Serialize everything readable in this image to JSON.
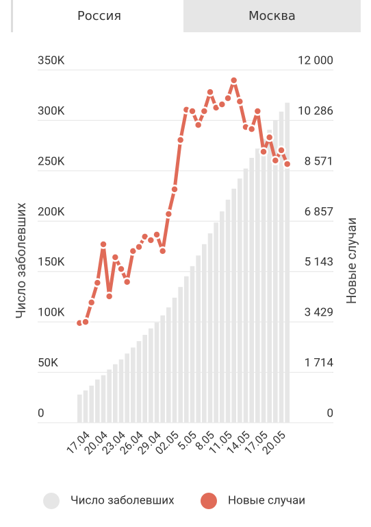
{
  "tabs": [
    "Россия",
    "Москва"
  ],
  "chart_data": {
    "type": "bar-line",
    "ylabel": "Число заболевших",
    "y2label": "Новые случаи",
    "categories": [
      null,
      "17.04",
      null,
      null,
      "20.04",
      null,
      null,
      "23.04",
      null,
      null,
      "26.04",
      null,
      null,
      "29.04",
      null,
      null,
      "02.05",
      null,
      null,
      "5.05",
      null,
      null,
      "8.05",
      null,
      null,
      "11.05",
      null,
      null,
      "14.05",
      null,
      null,
      "17.05",
      null,
      null,
      "20.05",
      null
    ],
    "series": [
      {
        "name": "Число заболевших",
        "type": "bar",
        "color": "#e6e6e6",
        "values": [
          27938,
          32008,
          36793,
          42853,
          47121,
          52763,
          57999,
          62773,
          68622,
          74588,
          80949,
          87147,
          93558,
          99399,
          106498,
          114431,
          124054,
          134687,
          145268,
          155370,
          165929,
          177160,
          187859,
          198676,
          209688,
          221344,
          232243,
          242271,
          252245,
          262843,
          272043,
          281752,
          290678,
          299941,
          308705,
          317554
        ]
      },
      {
        "name": "Новые случаи",
        "type": "line",
        "axis": "y2",
        "color": "#e06b58",
        "values": [
          3390,
          3430,
          4090,
          4760,
          6070,
          4300,
          5630,
          5230,
          4790,
          5840,
          5980,
          6330,
          6210,
          6400,
          5840,
          7100,
          7940,
          9620,
          10650,
          10600,
          10130,
          10600,
          11250,
          10720,
          10830,
          11040,
          11650,
          10930,
          10060,
          9990,
          10600,
          9220,
          9710,
          8920,
          9270,
          8800
        ]
      }
    ],
    "ylim": [
      0,
      350000
    ],
    "yticks": [
      0,
      {
        "value": 50000,
        "label": "50K"
      },
      {
        "value": 100000,
        "label": "100K"
      },
      {
        "value": 150000,
        "label": "150K"
      },
      {
        "value": 200000,
        "label": "200K"
      },
      {
        "value": 250000,
        "label": "250K"
      },
      {
        "value": 300000,
        "label": "300K"
      },
      {
        "value": 350000,
        "label": "350K"
      }
    ],
    "y2lim": [
      0,
      12000
    ],
    "y2ticks": [
      0,
      {
        "value": 1714,
        "label": "1 714"
      },
      {
        "value": 3429,
        "label": "3 429"
      },
      {
        "value": 5143,
        "label": "5 143"
      },
      {
        "value": 6857,
        "label": "6 857"
      },
      {
        "value": 8571,
        "label": "8 571"
      },
      {
        "value": 10286,
        "label": "10 286"
      },
      {
        "value": 12000,
        "label": "12 000"
      }
    ],
    "grid": true
  }
}
